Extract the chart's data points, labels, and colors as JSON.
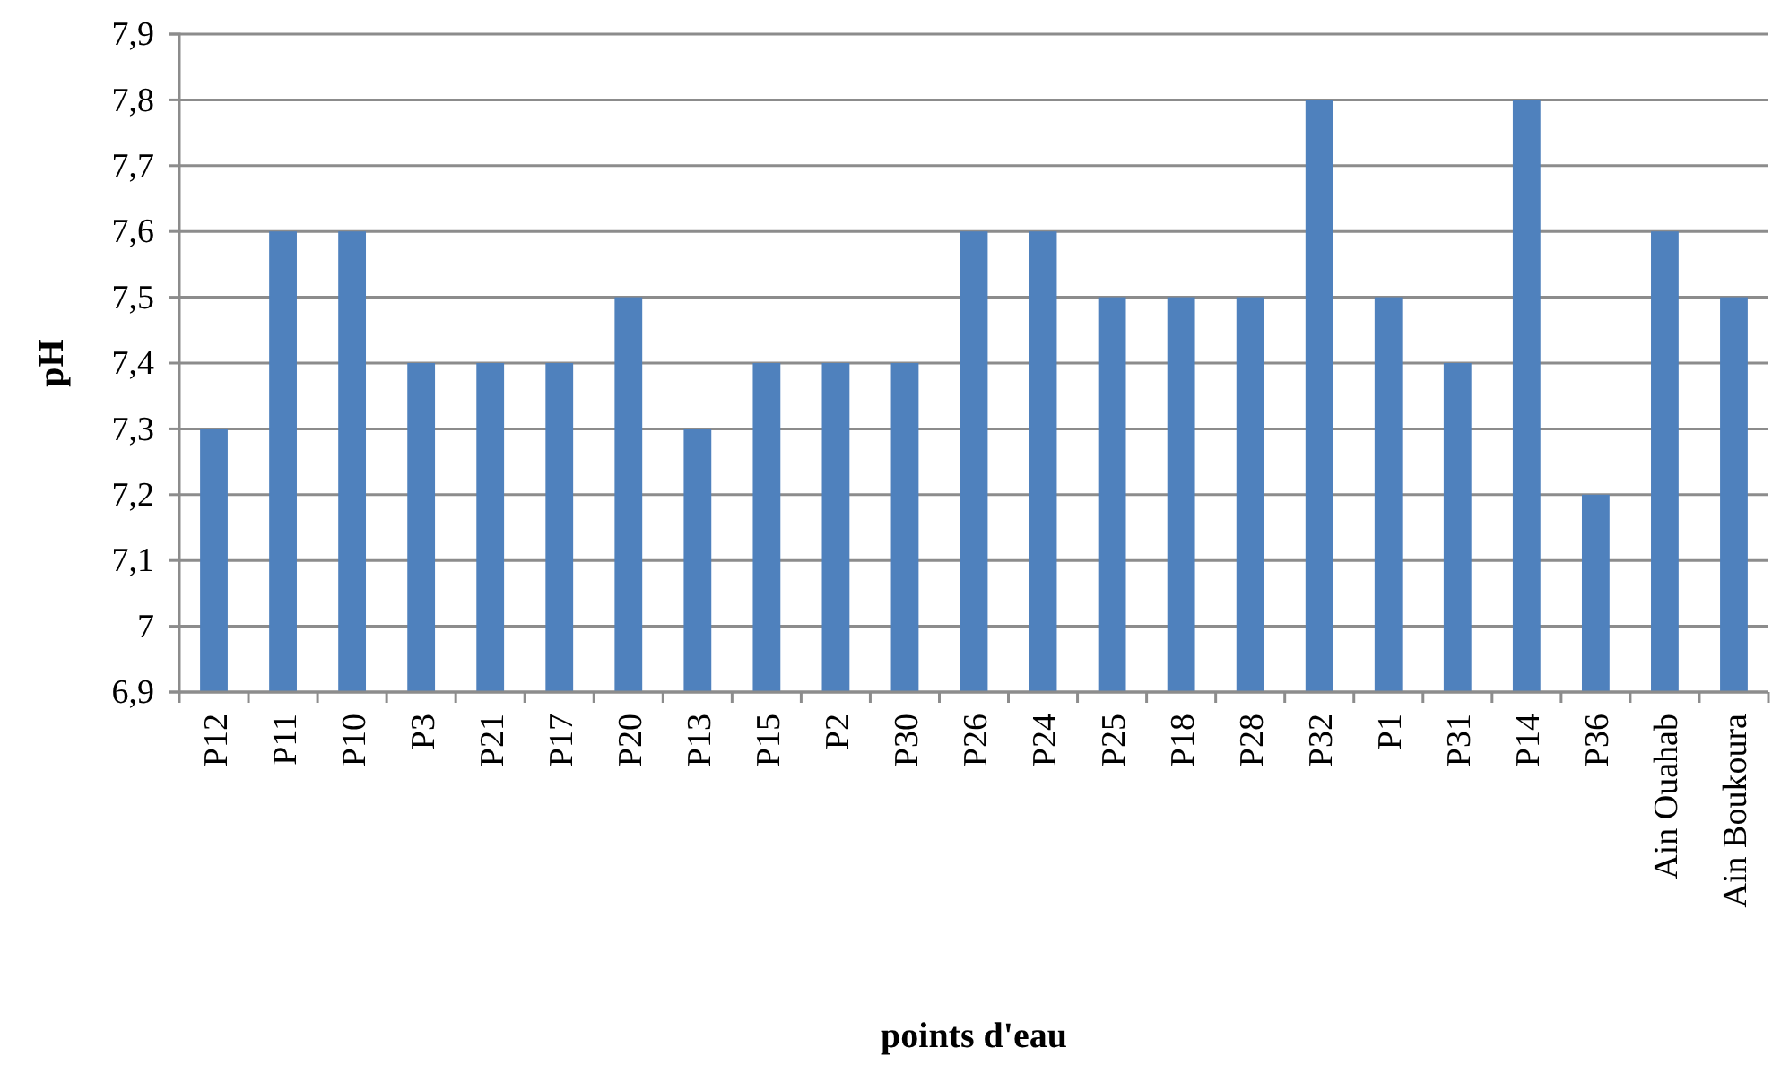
{
  "chart_data": {
    "type": "bar",
    "xlabel": "points d'eau",
    "ylabel": "pH",
    "categories": [
      "P12",
      "P11",
      "P10",
      "P3",
      "P21",
      "P17",
      "P20",
      "P13",
      "P15",
      "P2",
      "P30",
      "P26",
      "P24",
      "P25",
      "P18",
      "P28",
      "P32",
      "P1",
      "P31",
      "P14",
      "P36",
      "Ain Ouahab",
      "Ain Boukoura"
    ],
    "values": [
      7.3,
      7.6,
      7.6,
      7.4,
      7.4,
      7.4,
      7.5,
      7.3,
      7.4,
      7.4,
      7.4,
      7.6,
      7.6,
      7.5,
      7.5,
      7.5,
      7.8,
      7.5,
      7.4,
      7.8,
      7.2,
      7.6,
      7.5
    ],
    "color": "#4f81bd",
    "ylim": [
      6.9,
      7.9
    ],
    "yticks": [
      {
        "value": 6.9,
        "label": "6,9"
      },
      {
        "value": 7,
        "label": "7"
      },
      {
        "value": 7.1,
        "label": "7,1"
      },
      {
        "value": 7.2,
        "label": "7,2"
      },
      {
        "value": 7.3,
        "label": "7,3"
      },
      {
        "value": 7.4,
        "label": "7,4"
      },
      {
        "value": 7.5,
        "label": "7,5"
      },
      {
        "value": 7.6,
        "label": "7,6"
      },
      {
        "value": 7.7,
        "label": "7,7"
      },
      {
        "value": 7.8,
        "label": "7,8"
      },
      {
        "value": 7.9,
        "label": "7,9"
      }
    ],
    "grid": "y"
  }
}
